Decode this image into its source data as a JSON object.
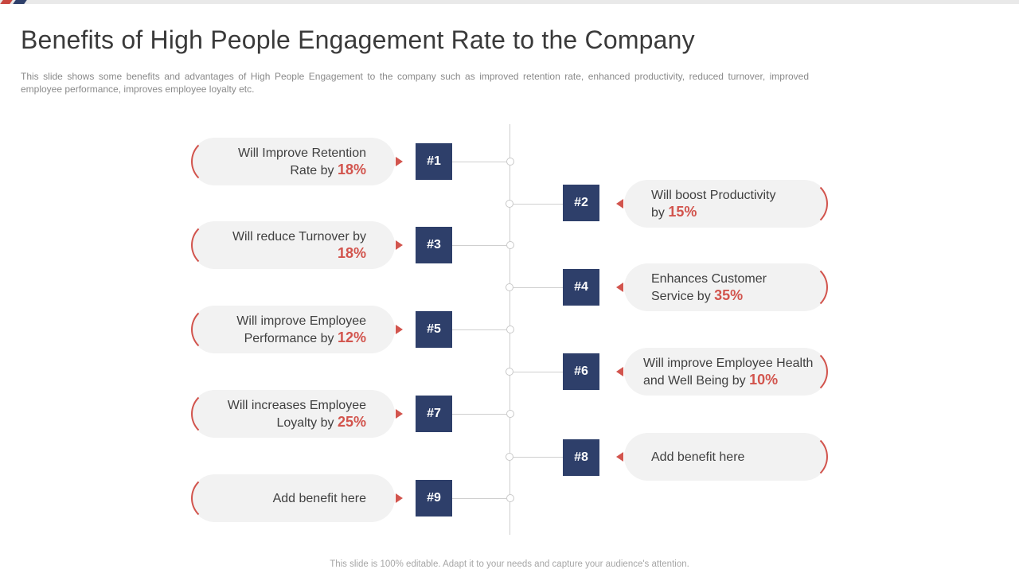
{
  "slide": {
    "title": "Benefits of High People Engagement Rate to the Company",
    "subtitle": "This slide shows some benefits and advantages of High People Engagement to the company such as improved retention rate, enhanced productivity, reduced turnover, improved employee performance, improves employee loyalty etc.",
    "footer": "This slide is 100% editable. Adapt it to your needs and capture your audience's attention."
  },
  "accent": "#d2544d",
  "badge_color": "#2e3f6a",
  "benefits": [
    {
      "num": "#1",
      "line1": "Will Improve Retention",
      "line2": "Rate by ",
      "pct": "18%"
    },
    {
      "num": "#2",
      "line1": "Will boost Productivity",
      "line2": "by ",
      "pct": "15%"
    },
    {
      "num": "#3",
      "line1": "Will reduce Turnover by",
      "line2": "",
      "pct": "18%"
    },
    {
      "num": "#4",
      "line1": "Enhances Customer",
      "line2": "Service by ",
      "pct": "35%"
    },
    {
      "num": "#5",
      "line1": "Will improve Employee",
      "line2": "Performance by ",
      "pct": "12%"
    },
    {
      "num": "#6",
      "line1": "Will improve Employee Health",
      "line2": "and Well Being by ",
      "pct": "10%"
    },
    {
      "num": "#7",
      "line1": "Will increases Employee",
      "line2": "Loyalty by ",
      "pct": "25%"
    },
    {
      "num": "#8",
      "line1": "Add benefit here",
      "line2": "",
      "pct": ""
    },
    {
      "num": "#9",
      "line1": "Add benefit here",
      "line2": "",
      "pct": ""
    }
  ]
}
